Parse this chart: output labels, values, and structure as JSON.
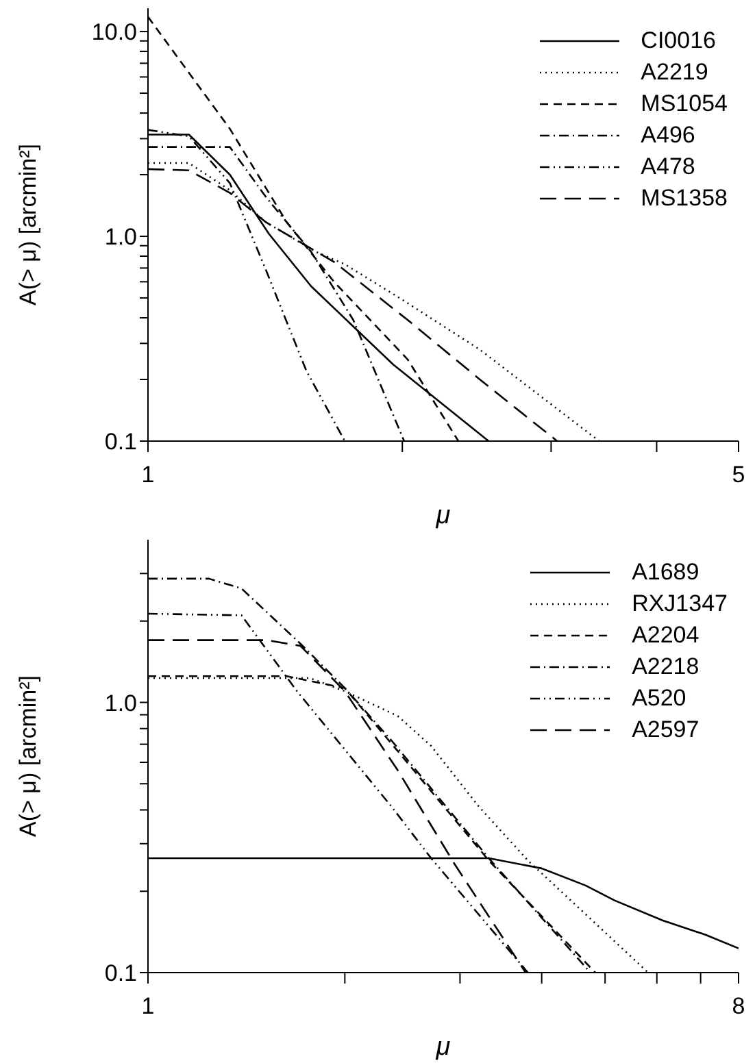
{
  "chart_data": [
    {
      "type": "line",
      "xlabel": "μ",
      "ylabel": "A(> μ) [arcmin²]",
      "log": "xy",
      "legend": "top right",
      "xlim": [
        1,
        5
      ],
      "xticks": [
        1,
        {
          "value": 2,
          "label": null
        },
        {
          "value": 3,
          "label": null
        },
        {
          "value": 4,
          "label": null
        },
        5
      ],
      "ylim": [
        0.1,
        13
      ],
      "yticks": [
        {
          "value": 0.1,
          "label": "0.1"
        },
        {
          "value": 0.2,
          "label": null
        },
        {
          "value": 0.3,
          "label": null
        },
        {
          "value": 0.4,
          "label": null
        },
        {
          "value": 0.5,
          "label": null
        },
        {
          "value": 0.6,
          "label": null
        },
        {
          "value": 0.7,
          "label": null
        },
        {
          "value": 0.8,
          "label": null
        },
        {
          "value": 0.9,
          "label": null
        },
        {
          "value": 1,
          "label": "1.0"
        },
        {
          "value": 2,
          "label": null
        },
        {
          "value": 3,
          "label": null
        },
        {
          "value": 4,
          "label": null
        },
        {
          "value": 5,
          "label": null
        },
        {
          "value": 6,
          "label": null
        },
        {
          "value": 7,
          "label": null
        },
        {
          "value": 8,
          "label": null
        },
        {
          "value": 9,
          "label": null
        },
        {
          "value": 10,
          "label": "10.0"
        }
      ],
      "series": [
        {
          "name": "CI0016",
          "color": "#000000",
          "line_style": "solid",
          "x": [
            1,
            1.118,
            1.25,
            1.39,
            1.56,
            1.95,
            2.53
          ],
          "values": [
            3.14,
            3.14,
            2.0,
            1.03,
            0.57,
            0.237,
            0.1
          ]
        },
        {
          "name": "A2219",
          "color": "#000000",
          "line_style": "dotted",
          "x": [
            1,
            1.118,
            1.25,
            1.38,
            1.58,
            1.71,
            1.97,
            2.47,
            3.42
          ],
          "values": [
            2.28,
            2.28,
            1.68,
            1.17,
            0.84,
            0.73,
            0.51,
            0.28,
            0.1
          ]
        },
        {
          "name": "MS1054",
          "color": "#000000",
          "line_style": "dashed",
          "x": [
            1,
            1.25,
            1.46,
            1.66,
            2.03,
            2.33
          ],
          "values": [
            11.8,
            3.35,
            1.17,
            0.6,
            0.25,
            0.1
          ]
        },
        {
          "name": "A496",
          "color": "#000000",
          "line_style": "dashdot",
          "x": [
            1,
            1.25,
            1.38,
            1.56,
            1.75,
            2.01
          ],
          "values": [
            2.73,
            2.73,
            1.55,
            0.84,
            0.39,
            0.1
          ]
        },
        {
          "name": "A478",
          "color": "#000000",
          "line_style": "dashdotdot",
          "x": [
            1,
            1.118,
            1.25,
            1.38,
            1.54,
            1.71
          ],
          "values": [
            3.31,
            3.08,
            1.82,
            0.68,
            0.22,
            0.1
          ]
        },
        {
          "name": "MS1358",
          "color": "#000000",
          "line_style": "longdash",
          "x": [
            1,
            1.118,
            1.25,
            1.38,
            1.66,
            2.03,
            2.47,
            3.05
          ],
          "values": [
            2.13,
            2.1,
            1.63,
            1.17,
            0.75,
            0.39,
            0.2,
            0.1
          ]
        }
      ]
    },
    {
      "type": "line",
      "xlabel": "μ",
      "ylabel": "A(> μ) [arcmin²]",
      "log": "xy",
      "legend": "top right",
      "xlim": [
        1,
        8
      ],
      "xticks": [
        1,
        {
          "value": 2,
          "label": null
        },
        {
          "value": 3,
          "label": null
        },
        {
          "value": 4,
          "label": null
        },
        {
          "value": 5,
          "label": null
        },
        {
          "value": 6,
          "label": null
        },
        {
          "value": 7,
          "label": null
        },
        8
      ],
      "ylim": [
        0.1,
        4
      ],
      "yticks": [
        {
          "value": 0.1,
          "label": "0.1"
        },
        {
          "value": 0.2,
          "label": null
        },
        {
          "value": 0.3,
          "label": null
        },
        {
          "value": 0.4,
          "label": null
        },
        {
          "value": 0.5,
          "label": null
        },
        {
          "value": 0.6,
          "label": null
        },
        {
          "value": 0.7,
          "label": null
        },
        {
          "value": 0.8,
          "label": null
        },
        {
          "value": 0.9,
          "label": null
        },
        {
          "value": 1,
          "label": "1.0"
        },
        {
          "value": 2,
          "label": null
        },
        {
          "value": 3,
          "label": null
        }
      ],
      "series": [
        {
          "name": "A1689",
          "color": "#000000",
          "line_style": "solid",
          "x": [
            1,
            3.32,
            4.0,
            4.67,
            5.17,
            6.12,
            7.12,
            8
          ],
          "values": [
            0.265,
            0.265,
            0.243,
            0.21,
            0.185,
            0.156,
            0.138,
            0.123
          ]
        },
        {
          "name": "RXJ1347",
          "color": "#000000",
          "line_style": "dotted",
          "x": [
            1,
            1.77,
            2.0,
            2.41,
            2.71,
            3.21,
            3.81,
            5.82
          ],
          "values": [
            1.23,
            1.23,
            1.1,
            0.89,
            0.69,
            0.41,
            0.26,
            0.1
          ]
        },
        {
          "name": "A2204",
          "color": "#000000",
          "line_style": "dashed",
          "x": [
            1,
            1.63,
            2.0,
            2.41,
            3.32,
            4.83
          ],
          "values": [
            1.25,
            1.25,
            1.13,
            0.66,
            0.26,
            0.1
          ]
        },
        {
          "name": "A2218",
          "color": "#000000",
          "line_style": "dashdot",
          "x": [
            1,
            1.24,
            1.39,
            1.71,
            2.0,
            2.36,
            3.32,
            4.75
          ],
          "values": [
            2.87,
            2.87,
            2.64,
            1.65,
            1.13,
            0.72,
            0.265,
            0.1
          ]
        },
        {
          "name": "A520",
          "color": "#000000",
          "line_style": "dashdotdot",
          "x": [
            1,
            1.39,
            1.69,
            2.36,
            2.71,
            3.81
          ],
          "values": [
            2.13,
            2.1,
            1.1,
            0.41,
            0.265,
            0.1
          ]
        },
        {
          "name": "A2597",
          "color": "#000000",
          "line_style": "longdash",
          "x": [
            1,
            1.52,
            1.71,
            2.0,
            2.41,
            2.95,
            3.78
          ],
          "values": [
            1.7,
            1.7,
            1.62,
            1.1,
            0.56,
            0.25,
            0.1
          ]
        }
      ]
    }
  ]
}
